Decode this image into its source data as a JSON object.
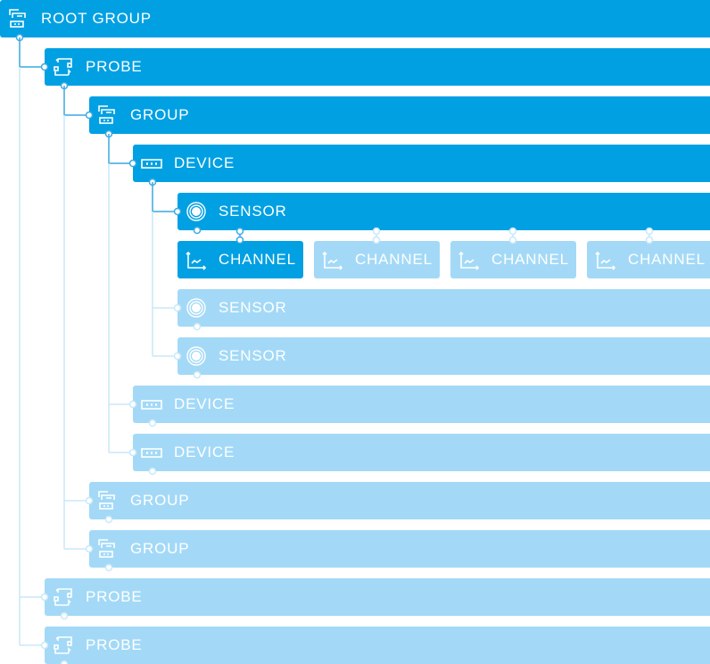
{
  "colors": {
    "active": "#00a0e3",
    "inactive": "#a3d9f7",
    "active_line": "#3aa9e0",
    "inactive_line": "#c8e8f9"
  },
  "tree": [
    {
      "label": "ROOT GROUP",
      "type": "group",
      "level": 0,
      "active": true
    },
    {
      "label": "PROBE",
      "type": "probe",
      "level": 1,
      "active": true
    },
    {
      "label": "GROUP",
      "type": "group",
      "level": 2,
      "active": true
    },
    {
      "label": "DEVICE",
      "type": "device",
      "level": 3,
      "active": true
    },
    {
      "label": "SENSOR",
      "type": "sensor",
      "level": 4,
      "active": true,
      "channels": [
        {
          "label": "CHANNEL",
          "active": true
        },
        {
          "label": "CHANNEL",
          "active": false
        },
        {
          "label": "CHANNEL",
          "active": false
        },
        {
          "label": "CHANNEL",
          "active": false
        }
      ]
    },
    {
      "label": "SENSOR",
      "type": "sensor",
      "level": 4,
      "active": false
    },
    {
      "label": "SENSOR",
      "type": "sensor",
      "level": 4,
      "active": false
    },
    {
      "label": "DEVICE",
      "type": "device",
      "level": 3,
      "active": false
    },
    {
      "label": "DEVICE",
      "type": "device",
      "level": 3,
      "active": false
    },
    {
      "label": "GROUP",
      "type": "group",
      "level": 2,
      "active": false
    },
    {
      "label": "GROUP",
      "type": "group",
      "level": 2,
      "active": false
    },
    {
      "label": "PROBE",
      "type": "probe",
      "level": 1,
      "active": false
    },
    {
      "label": "PROBE",
      "type": "probe",
      "level": 1,
      "active": false
    }
  ]
}
